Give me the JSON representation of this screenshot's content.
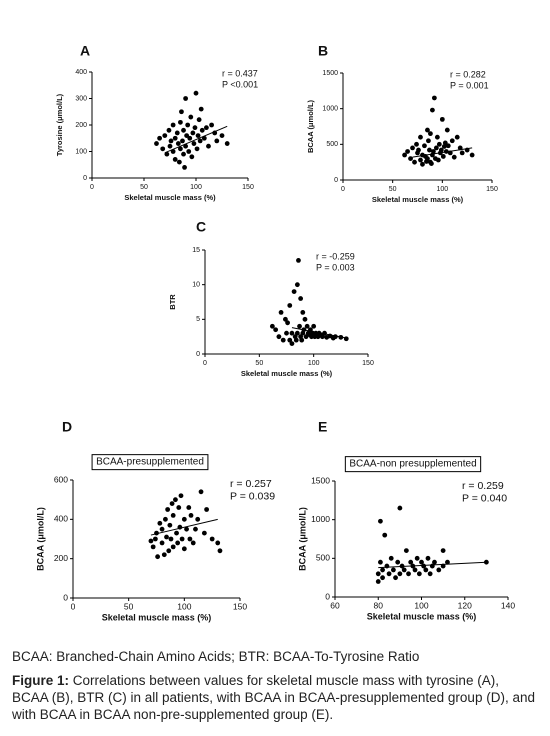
{
  "chart_data": [
    {
      "type": "scatter",
      "panel": "A",
      "xlabel": "Skeletal muscle mass (%)",
      "ylabel": "Tyrosine (μmol/L)",
      "annotations": [
        "r = 0.437",
        "P <0.001"
      ],
      "xlim": [
        0,
        150
      ],
      "xticks": [
        0,
        50,
        100,
        150
      ],
      "ylim": [
        0,
        400
      ],
      "yticks": [
        0,
        100,
        200,
        300,
        400
      ],
      "x": [
        62,
        65,
        68,
        70,
        72,
        74,
        75,
        76,
        78,
        78,
        80,
        80,
        82,
        83,
        84,
        85,
        85,
        86,
        87,
        88,
        88,
        89,
        90,
        90,
        91,
        92,
        93,
        94,
        95,
        96,
        97,
        98,
        99,
        100,
        101,
        102,
        103,
        104,
        105,
        106,
        108,
        110,
        112,
        115,
        118,
        120,
        125,
        130
      ],
      "values": [
        130,
        150,
        110,
        160,
        90,
        180,
        120,
        140,
        100,
        200,
        70,
        150,
        170,
        130,
        60,
        210,
        110,
        250,
        140,
        90,
        180,
        40,
        300,
        120,
        160,
        200,
        100,
        150,
        230,
        80,
        170,
        130,
        190,
        320,
        110,
        160,
        220,
        140,
        260,
        180,
        150,
        190,
        120,
        200,
        170,
        140,
        160,
        130
      ],
      "fit_x": [
        70,
        130
      ],
      "fit_y": [
        95,
        195
      ],
      "color": "#000000"
    },
    {
      "type": "scatter",
      "panel": "B",
      "xlabel": "Skeletal muscle mass (%)",
      "ylabel": "BCAA (μmol/L)",
      "annotations": [
        "r = 0.282",
        "P = 0.001"
      ],
      "xlim": [
        0,
        150
      ],
      "xticks": [
        0,
        50,
        100,
        150
      ],
      "ylim": [
        0,
        1500
      ],
      "yticks": [
        0,
        500,
        1000,
        1500
      ],
      "x": [
        62,
        65,
        68,
        70,
        72,
        74,
        75,
        76,
        78,
        78,
        80,
        80,
        82,
        83,
        84,
        85,
        85,
        86,
        87,
        88,
        88,
        89,
        90,
        90,
        91,
        92,
        93,
        94,
        95,
        96,
        97,
        98,
        99,
        100,
        101,
        102,
        103,
        104,
        105,
        106,
        108,
        110,
        112,
        115,
        118,
        120,
        125,
        130
      ],
      "values": [
        350,
        400,
        300,
        450,
        250,
        500,
        380,
        420,
        280,
        600,
        220,
        350,
        480,
        330,
        260,
        700,
        300,
        550,
        420,
        250,
        650,
        230,
        980,
        350,
        400,
        1150,
        300,
        450,
        600,
        280,
        500,
        380,
        420,
        850,
        330,
        470,
        520,
        400,
        700,
        480,
        380,
        550,
        320,
        600,
        450,
        380,
        420,
        350
      ],
      "fit_x": [
        70,
        130
      ],
      "fit_y": [
        320,
        450
      ],
      "color": "#000000"
    },
    {
      "type": "scatter",
      "panel": "C",
      "xlabel": "Skeletal muscle mass (%)",
      "ylabel": "BTR",
      "annotations": [
        "r = -0.259",
        "P = 0.003"
      ],
      "xlim": [
        0,
        150
      ],
      "xticks": [
        0,
        50,
        100,
        150
      ],
      "ylim": [
        0,
        15
      ],
      "yticks": [
        0,
        5,
        10,
        15
      ],
      "x": [
        62,
        65,
        68,
        70,
        72,
        74,
        75,
        76,
        78,
        78,
        80,
        80,
        82,
        83,
        84,
        85,
        85,
        86,
        87,
        88,
        88,
        89,
        90,
        90,
        91,
        92,
        93,
        94,
        95,
        96,
        97,
        98,
        99,
        100,
        101,
        102,
        103,
        104,
        105,
        106,
        108,
        110,
        112,
        115,
        118,
        120,
        125,
        130
      ],
      "values": [
        4,
        3.5,
        2.5,
        6,
        2,
        5,
        3,
        4.5,
        2,
        7,
        1.5,
        3,
        9,
        2.5,
        2,
        10,
        3,
        13.5,
        4,
        2.5,
        8,
        2,
        6,
        3,
        3.5,
        5,
        2.5,
        4,
        3,
        2.8,
        3.5,
        2.5,
        3,
        4,
        2.5,
        3,
        2.8,
        2.5,
        3,
        2.8,
        2.5,
        3,
        2.4,
        2.6,
        2.3,
        2.5,
        2.4,
        2.2
      ],
      "fit_x": [
        80,
        130
      ],
      "fit_y": [
        3.8,
        2.3
      ],
      "color": "#000000"
    },
    {
      "type": "scatter",
      "panel": "D",
      "box_label": "BCAA-presupplemented",
      "xlabel": "Skeletal muscle mass (%)",
      "ylabel": "BCAA (μmol/L)",
      "annotations": [
        "r = 0.257",
        "P = 0.039"
      ],
      "xlim": [
        0,
        150
      ],
      "xticks": [
        0,
        50,
        100,
        150
      ],
      "ylim": [
        0,
        600
      ],
      "yticks": [
        0,
        200,
        400,
        600
      ],
      "x": [
        70,
        72,
        74,
        75,
        76,
        78,
        80,
        80,
        82,
        83,
        84,
        85,
        86,
        87,
        88,
        89,
        90,
        90,
        92,
        93,
        94,
        95,
        96,
        97,
        98,
        100,
        100,
        102,
        104,
        105,
        106,
        108,
        110,
        112,
        115,
        118,
        120,
        125,
        130,
        132
      ],
      "values": [
        290,
        260,
        300,
        330,
        210,
        380,
        280,
        350,
        220,
        400,
        310,
        450,
        240,
        370,
        300,
        480,
        420,
        260,
        500,
        330,
        280,
        460,
        360,
        520,
        300,
        400,
        250,
        350,
        460,
        300,
        420,
        280,
        350,
        400,
        540,
        330,
        450,
        300,
        280,
        240
      ],
      "fit_x": [
        70,
        130
      ],
      "fit_y": [
        320,
        400
      ],
      "color": "#000000"
    },
    {
      "type": "scatter",
      "panel": "E",
      "box_label": "BCAA-non presupplemented",
      "xlabel": "Skeletal muscle mass (%)",
      "ylabel": "BCAA (μmol/L)",
      "annotations": [
        "r = 0.259",
        "P = 0.040"
      ],
      "xlim": [
        60,
        140
      ],
      "xticks": [
        60,
        80,
        100,
        120,
        140
      ],
      "ylim": [
        0,
        1500
      ],
      "yticks": [
        0,
        500,
        1000,
        1500
      ],
      "x": [
        80,
        80,
        81,
        81,
        82,
        82,
        83,
        84,
        85,
        86,
        87,
        88,
        89,
        90,
        90,
        91,
        92,
        93,
        94,
        95,
        96,
        97,
        98,
        99,
        100,
        101,
        102,
        103,
        104,
        105,
        106,
        108,
        110,
        110,
        112,
        130
      ],
      "values": [
        200,
        300,
        450,
        980,
        350,
        250,
        800,
        400,
        300,
        500,
        350,
        250,
        450,
        1150,
        300,
        400,
        350,
        600,
        300,
        450,
        400,
        350,
        500,
        300,
        450,
        400,
        350,
        500,
        300,
        400,
        450,
        350,
        600,
        400,
        450,
        450
      ],
      "fit_x": [
        80,
        130
      ],
      "fit_y": [
        380,
        450
      ],
      "color": "#000000"
    }
  ],
  "abbreviations": "BCAA: Branched-Chain Amino Acids; BTR: BCAA-To-Tyrosine Ratio",
  "caption": {
    "label": "Figure 1:",
    "text": "Correlations between values for skeletal muscle mass with tyrosine (A), BCAA (B), BTR (C) in all patients, with BCAA in BCAA-presupplemented group (D), and with BCAA in BCAA non-pre-supplemented group (E)."
  }
}
